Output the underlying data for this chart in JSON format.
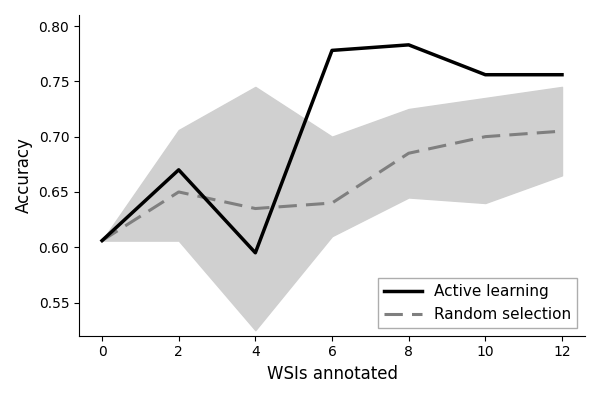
{
  "x": [
    0,
    2,
    4,
    6,
    8,
    10,
    12
  ],
  "al_mean": [
    0.606,
    0.67,
    0.595,
    0.778,
    0.783,
    0.756,
    0.756
  ],
  "rs_mean": [
    0.606,
    0.65,
    0.635,
    0.64,
    0.685,
    0.7,
    0.705
  ],
  "shade_lower": [
    0.606,
    0.606,
    0.525,
    0.61,
    0.645,
    0.64,
    0.665
  ],
  "shade_upper": [
    0.606,
    0.706,
    0.745,
    0.7,
    0.725,
    0.735,
    0.745
  ],
  "xlabel": "WSIs annotated",
  "ylabel": "Accuracy",
  "xticks": [
    0,
    2,
    4,
    6,
    8,
    10,
    12
  ],
  "ylim": [
    0.52,
    0.81
  ],
  "yticks": [
    0.55,
    0.6,
    0.65,
    0.7,
    0.75,
    0.8
  ],
  "al_color": "#000000",
  "rs_color": "#7f7f7f",
  "shade_color": "#d0d0d0",
  "al_label": "Active learning",
  "rs_label": "Random selection",
  "legend_loc": "lower right",
  "al_linewidth": 2.5,
  "rs_linewidth": 2.2
}
